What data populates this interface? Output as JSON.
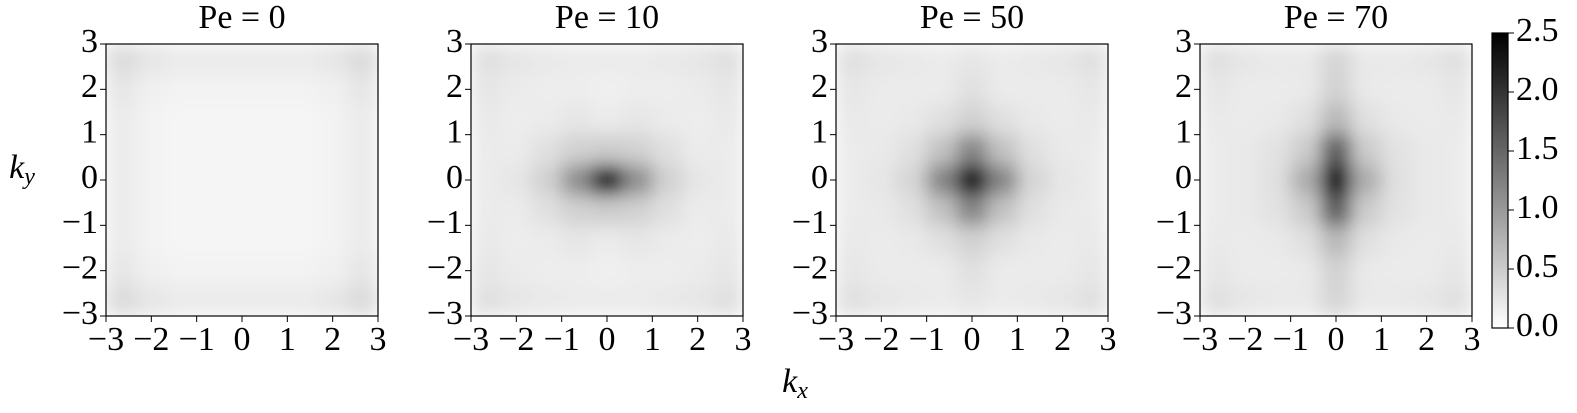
{
  "chart_data": [
    {
      "type": "heatmap",
      "title": "Pe = 0",
      "cmap": "Greys",
      "zlim": [
        0,
        2.5
      ],
      "xlim": [
        -3,
        3
      ],
      "ylim": [
        -3,
        3
      ],
      "xticks": [
        {
          "value": -3,
          "label": "−3"
        },
        {
          "value": -2,
          "label": "−2"
        },
        {
          "value": -1,
          "label": "−1"
        },
        0,
        1,
        2,
        3
      ],
      "yticks": [
        {
          "value": -3,
          "label": "−3"
        },
        {
          "value": -2,
          "label": "−2"
        },
        {
          "value": -1,
          "label": "−1"
        },
        0,
        1,
        2,
        3
      ],
      "z": [
        [
          0.35,
          0.25,
          0.2,
          0.2,
          0.2,
          0.2,
          0.2,
          0.25,
          0.35
        ],
        [
          0.25,
          0.15,
          0.12,
          0.12,
          0.12,
          0.12,
          0.12,
          0.15,
          0.25
        ],
        [
          0.2,
          0.12,
          0.1,
          0.1,
          0.1,
          0.1,
          0.1,
          0.12,
          0.2
        ],
        [
          0.2,
          0.12,
          0.1,
          0.1,
          0.1,
          0.1,
          0.1,
          0.12,
          0.2
        ],
        [
          0.2,
          0.12,
          0.1,
          0.1,
          0.1,
          0.1,
          0.1,
          0.12,
          0.2
        ],
        [
          0.2,
          0.12,
          0.1,
          0.1,
          0.1,
          0.1,
          0.1,
          0.12,
          0.2
        ],
        [
          0.2,
          0.12,
          0.1,
          0.1,
          0.1,
          0.1,
          0.1,
          0.12,
          0.2
        ],
        [
          0.25,
          0.15,
          0.12,
          0.12,
          0.12,
          0.12,
          0.12,
          0.15,
          0.25
        ],
        [
          0.35,
          0.25,
          0.2,
          0.2,
          0.2,
          0.2,
          0.2,
          0.25,
          0.35
        ]
      ]
    },
    {
      "type": "heatmap",
      "title": "Pe = 10",
      "cmap": "Greys",
      "zlim": [
        0,
        2.5
      ],
      "xlim": [
        -3,
        3
      ],
      "ylim": [
        -3,
        3
      ],
      "xticks": [
        {
          "value": -3,
          "label": "−3"
        },
        {
          "value": -2,
          "label": "−2"
        },
        {
          "value": -1,
          "label": "−1"
        },
        0,
        1,
        2,
        3
      ],
      "yticks": [
        {
          "value": -3,
          "label": "−3"
        },
        {
          "value": -2,
          "label": "−2"
        },
        {
          "value": -1,
          "label": "−1"
        },
        0,
        1,
        2,
        3
      ],
      "z": [
        [
          0.3,
          0.25,
          0.22,
          0.2,
          0.2,
          0.2,
          0.22,
          0.25,
          0.3
        ],
        [
          0.25,
          0.2,
          0.18,
          0.18,
          0.15,
          0.18,
          0.18,
          0.2,
          0.25
        ],
        [
          0.22,
          0.18,
          0.2,
          0.25,
          0.2,
          0.25,
          0.2,
          0.18,
          0.22
        ],
        [
          0.2,
          0.2,
          0.3,
          0.45,
          0.5,
          0.45,
          0.3,
          0.2,
          0.2
        ],
        [
          0.2,
          0.25,
          0.45,
          1.1,
          2.5,
          1.1,
          0.45,
          0.25,
          0.2
        ],
        [
          0.2,
          0.2,
          0.3,
          0.45,
          0.5,
          0.45,
          0.3,
          0.2,
          0.2
        ],
        [
          0.22,
          0.18,
          0.2,
          0.25,
          0.2,
          0.25,
          0.2,
          0.18,
          0.22
        ],
        [
          0.25,
          0.2,
          0.18,
          0.18,
          0.15,
          0.18,
          0.18,
          0.2,
          0.25
        ],
        [
          0.3,
          0.25,
          0.22,
          0.2,
          0.2,
          0.2,
          0.22,
          0.25,
          0.3
        ]
      ]
    },
    {
      "type": "heatmap",
      "title": "Pe = 50",
      "cmap": "Greys",
      "zlim": [
        0,
        2.5
      ],
      "xlim": [
        -3,
        3
      ],
      "ylim": [
        -3,
        3
      ],
      "xticks": [
        {
          "value": -3,
          "label": "−3"
        },
        {
          "value": -2,
          "label": "−2"
        },
        {
          "value": -1,
          "label": "−1"
        },
        0,
        1,
        2,
        3
      ],
      "yticks": [
        {
          "value": -3,
          "label": "−3"
        },
        {
          "value": -2,
          "label": "−2"
        },
        {
          "value": -1,
          "label": "−1"
        },
        0,
        1,
        2,
        3
      ],
      "z": [
        [
          0.3,
          0.25,
          0.22,
          0.2,
          0.25,
          0.2,
          0.22,
          0.25,
          0.3
        ],
        [
          0.25,
          0.2,
          0.2,
          0.2,
          0.3,
          0.2,
          0.2,
          0.2,
          0.25
        ],
        [
          0.22,
          0.2,
          0.22,
          0.3,
          0.45,
          0.3,
          0.22,
          0.2,
          0.22
        ],
        [
          0.2,
          0.22,
          0.3,
          0.6,
          1.2,
          0.6,
          0.3,
          0.22,
          0.2
        ],
        [
          0.2,
          0.25,
          0.4,
          1.2,
          2.5,
          1.2,
          0.4,
          0.25,
          0.2
        ],
        [
          0.2,
          0.22,
          0.3,
          0.6,
          1.2,
          0.6,
          0.3,
          0.22,
          0.2
        ],
        [
          0.22,
          0.2,
          0.22,
          0.3,
          0.45,
          0.3,
          0.22,
          0.2,
          0.22
        ],
        [
          0.25,
          0.2,
          0.2,
          0.2,
          0.3,
          0.2,
          0.2,
          0.2,
          0.25
        ],
        [
          0.3,
          0.25,
          0.22,
          0.2,
          0.25,
          0.2,
          0.22,
          0.25,
          0.3
        ]
      ]
    },
    {
      "type": "heatmap",
      "title": "Pe = 70",
      "cmap": "Greys",
      "zlim": [
        0,
        2.5
      ],
      "xlim": [
        -3,
        3
      ],
      "ylim": [
        -3,
        3
      ],
      "xticks": [
        {
          "value": -3,
          "label": "−3"
        },
        {
          "value": -2,
          "label": "−2"
        },
        {
          "value": -1,
          "label": "−1"
        },
        0,
        1,
        2,
        3
      ],
      "yticks": [
        {
          "value": -3,
          "label": "−3"
        },
        {
          "value": -2,
          "label": "−2"
        },
        {
          "value": -1,
          "label": "−1"
        },
        0,
        1,
        2,
        3
      ],
      "zticks": [
        {
          "value": 0,
          "label": "0.0"
        },
        0.5,
        {
          "value": 1,
          "label": "1.0"
        },
        1.5,
        {
          "value": 2,
          "label": "2.0"
        },
        2.5
      ],
      "z": [
        [
          0.3,
          0.25,
          0.22,
          0.22,
          0.4,
          0.22,
          0.22,
          0.25,
          0.3
        ],
        [
          0.25,
          0.2,
          0.2,
          0.22,
          0.45,
          0.22,
          0.2,
          0.2,
          0.25
        ],
        [
          0.22,
          0.2,
          0.22,
          0.3,
          0.7,
          0.3,
          0.22,
          0.2,
          0.22
        ],
        [
          0.2,
          0.22,
          0.28,
          0.5,
          1.6,
          0.5,
          0.28,
          0.22,
          0.2
        ],
        [
          0.2,
          0.22,
          0.3,
          0.8,
          2.5,
          0.8,
          0.3,
          0.22,
          0.2
        ],
        [
          0.2,
          0.22,
          0.28,
          0.5,
          1.6,
          0.5,
          0.28,
          0.22,
          0.2
        ],
        [
          0.22,
          0.2,
          0.22,
          0.3,
          0.7,
          0.3,
          0.22,
          0.2,
          0.22
        ],
        [
          0.25,
          0.2,
          0.2,
          0.22,
          0.45,
          0.22,
          0.2,
          0.2,
          0.25
        ],
        [
          0.3,
          0.25,
          0.22,
          0.22,
          0.4,
          0.22,
          0.22,
          0.25,
          0.3
        ]
      ]
    }
  ],
  "x_label": {
    "base": "k",
    "sub": "x"
  },
  "y_label": {
    "base": "k",
    "sub": "y"
  }
}
